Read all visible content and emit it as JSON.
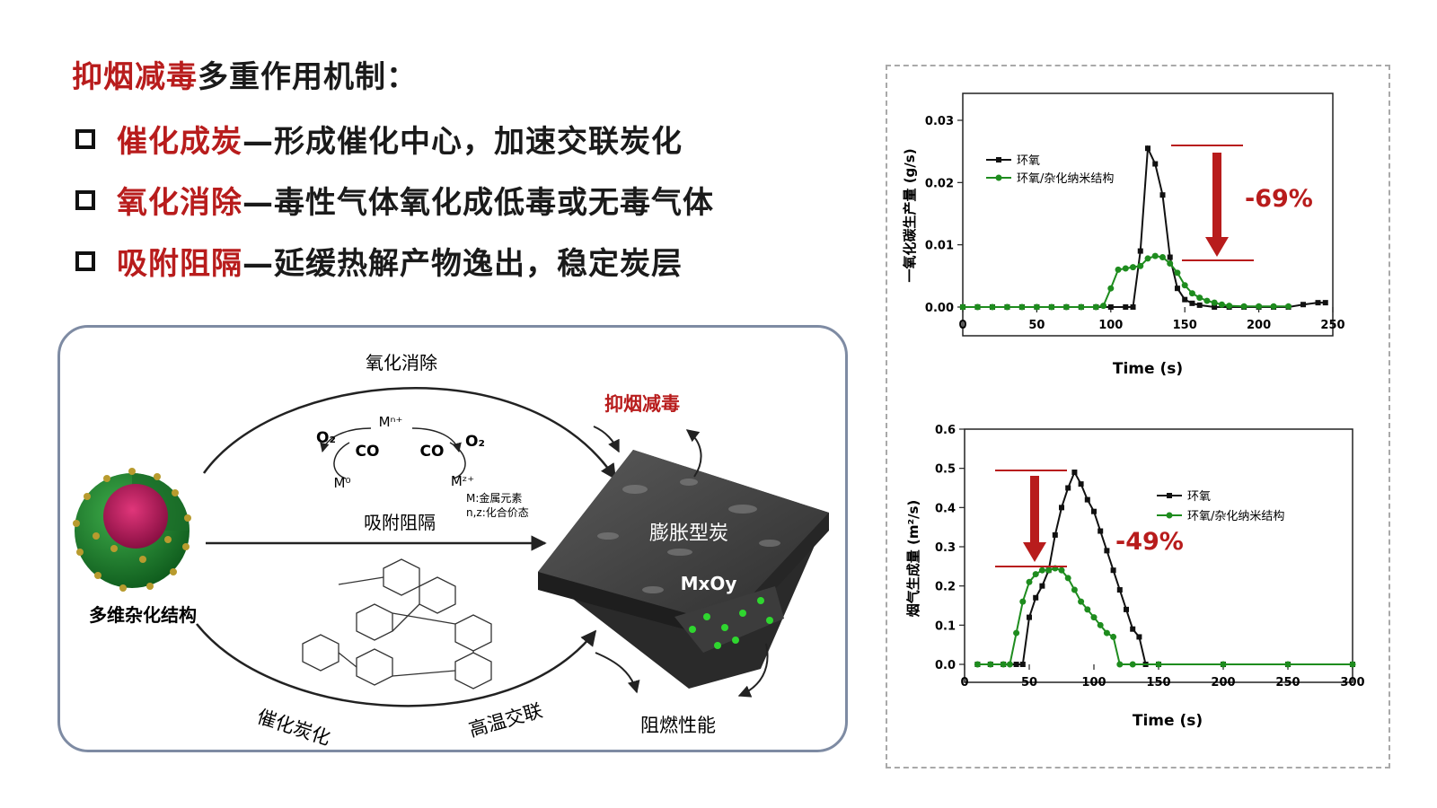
{
  "heading": {
    "highlight": "抑烟减毒",
    "rest": "多重作用机制："
  },
  "bullets": [
    {
      "key": "催化成炭",
      "desc": "—形成催化中心，加速交联炭化"
    },
    {
      "key": "氧化消除",
      "desc": "—毒性气体氧化成低毒或无毒气体"
    },
    {
      "key": "吸附阻隔",
      "desc": "—延缓热解产物逸出，稳定炭层"
    }
  ],
  "diagram": {
    "oxidation": "氧化消除",
    "adsorption": "吸附阻隔",
    "catalytic": "催化炭化",
    "crosslink": "高温交联",
    "hybrid": "多维杂化结构",
    "smoke": "抑烟减毒",
    "flame": "阻燃性能",
    "char": "膨胀型炭",
    "mxoy": "MxOy",
    "o2_left": "O₂",
    "o2_right": "O₂",
    "co_left": "CO",
    "co_right": "CO",
    "m_top": "Mⁿ⁺",
    "m_zero": "M⁰",
    "m_z": "Mᶻ⁺",
    "note_1": "M:金属元素",
    "note_2": "n,z:化合价态"
  },
  "colors": {
    "accent_red": "#b81c1c",
    "black_series": "#111111",
    "green_series": "#1e8c1e",
    "border": "#7e8ba3"
  },
  "chart_data": [
    {
      "type": "line",
      "xlabel": "Time (s)",
      "ylabel": "一氧化碳生产量 (g/s)",
      "xlim": [
        0,
        250
      ],
      "ylim": [
        0,
        0.03
      ],
      "xticks": [
        0,
        50,
        100,
        150,
        200,
        250
      ],
      "yticks": [
        "0.00",
        "0.01",
        "0.02",
        "0.03"
      ],
      "legend": "top-left",
      "annotation": "-69%",
      "series": [
        {
          "name": "环氧",
          "color": "#111111",
          "x": [
            0,
            10,
            20,
            30,
            40,
            50,
            60,
            70,
            80,
            90,
            100,
            110,
            115,
            120,
            125,
            130,
            135,
            140,
            145,
            150,
            155,
            160,
            170,
            180,
            190,
            200,
            210,
            220,
            230,
            240,
            245
          ],
          "y": [
            0,
            0,
            0,
            0,
            0,
            0,
            0,
            0,
            0,
            0,
            0,
            0,
            0,
            0.009,
            0.0255,
            0.023,
            0.018,
            0.008,
            0.003,
            0.0012,
            0.0006,
            0.0003,
            0,
            0,
            0,
            0,
            0,
            0,
            0.0004,
            0.0007,
            0.0007
          ]
        },
        {
          "name": "环氧/杂化纳米结构",
          "color": "#1e8c1e",
          "x": [
            0,
            10,
            20,
            30,
            40,
            50,
            60,
            70,
            80,
            90,
            95,
            100,
            105,
            110,
            115,
            120,
            125,
            130,
            135,
            140,
            145,
            150,
            155,
            160,
            165,
            170,
            175,
            180,
            190,
            200,
            210,
            220
          ],
          "y": [
            0,
            0,
            0,
            0,
            0,
            0,
            0,
            0,
            0,
            0,
            0.0002,
            0.003,
            0.006,
            0.0062,
            0.0064,
            0.0066,
            0.0078,
            0.0082,
            0.008,
            0.007,
            0.0055,
            0.0035,
            0.0022,
            0.0015,
            0.001,
            0.0007,
            0.0004,
            0.0002,
            0.0001,
            0.0001,
            0.0001,
            0.0001
          ]
        }
      ]
    },
    {
      "type": "line",
      "xlabel": "Time (s)",
      "ylabel": "烟气生成量 (m²/s)",
      "xlim": [
        0,
        300
      ],
      "ylim": [
        0,
        0.6
      ],
      "xticks": [
        0,
        50,
        100,
        150,
        200,
        250,
        300
      ],
      "yticks": [
        "0.0",
        "0.1",
        "0.2",
        "0.3",
        "0.4",
        "0.5",
        "0.6"
      ],
      "legend": "top-right",
      "annotation": "-49%",
      "series": [
        {
          "name": "环氧",
          "color": "#111111",
          "x": [
            10,
            20,
            30,
            40,
            45,
            50,
            55,
            60,
            65,
            70,
            75,
            80,
            85,
            90,
            95,
            100,
            105,
            110,
            115,
            120,
            125,
            130,
            135,
            140,
            150,
            200,
            250,
            300
          ],
          "y": [
            0,
            0,
            0,
            0,
            0,
            0.12,
            0.17,
            0.2,
            0.24,
            0.33,
            0.4,
            0.45,
            0.49,
            0.46,
            0.42,
            0.39,
            0.34,
            0.29,
            0.24,
            0.19,
            0.14,
            0.09,
            0.07,
            0,
            0,
            0,
            0,
            0
          ]
        },
        {
          "name": "环氧/杂化纳米结构",
          "color": "#1e8c1e",
          "x": [
            10,
            20,
            30,
            35,
            40,
            45,
            50,
            55,
            60,
            65,
            70,
            75,
            80,
            85,
            90,
            95,
            100,
            105,
            110,
            115,
            120,
            130,
            150,
            200,
            250,
            300
          ],
          "y": [
            0,
            0,
            0,
            0,
            0.08,
            0.16,
            0.21,
            0.23,
            0.24,
            0.24,
            0.245,
            0.24,
            0.22,
            0.19,
            0.16,
            0.14,
            0.12,
            0.1,
            0.08,
            0.07,
            0,
            0,
            0,
            0,
            0,
            0
          ]
        }
      ]
    }
  ]
}
